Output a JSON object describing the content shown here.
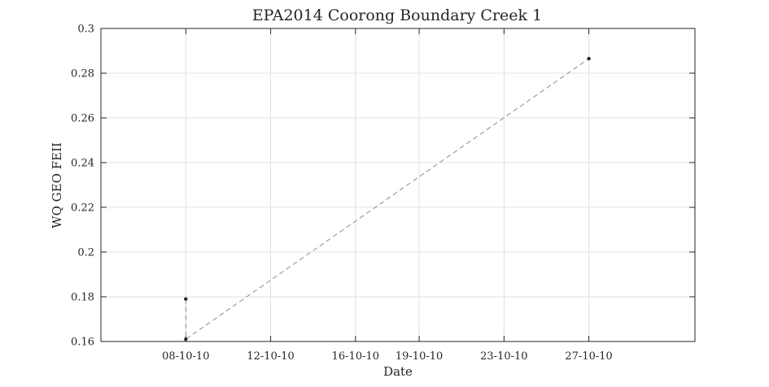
{
  "chart_data": {
    "type": "line",
    "title": "EPA2014 Coorong Boundary Creek 1",
    "xlabel": "Date",
    "ylabel": "WQ GEO FEII",
    "grid": true,
    "x_ticks": [
      "08-10-10",
      "12-10-10",
      "16-10-10",
      "19-10-10",
      "23-10-10",
      "27-10-10"
    ],
    "y_ticks": [
      "0.16",
      "0.18",
      "0.2",
      "0.22",
      "0.24",
      "0.26",
      "0.28",
      "0.3"
    ],
    "ylim": [
      0.16,
      0.3
    ],
    "xlim": [
      "04-10-10",
      "01-11-10"
    ],
    "series": [
      {
        "color": "#8c8c8c",
        "marker_color": "#262626",
        "line_style": "dashed",
        "points": [
          {
            "x": "08-10-10",
            "y": 0.179
          },
          {
            "x": "08-10-10",
            "y": 0.161
          },
          {
            "x": "27-10-10",
            "y": 0.2865
          }
        ]
      }
    ]
  }
}
